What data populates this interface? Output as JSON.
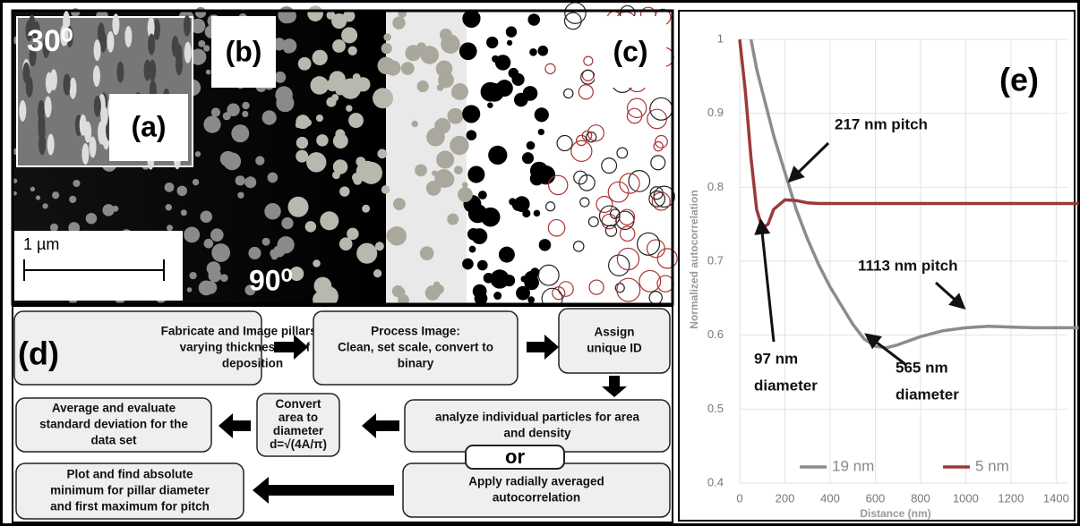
{
  "panel_labels": {
    "a": "(a)",
    "b": "(b)",
    "c": "(c)",
    "d": "(d)",
    "e": "(e)"
  },
  "micrograph": {
    "tilt_inset": "30⁰",
    "tilt_main": "90⁰",
    "scale_bar": "1 µm"
  },
  "flowchart": {
    "boxes": [
      {
        "lines": [
          "Fabricate and Image pillars with",
          "varying thicknesses of Pt",
          "deposition"
        ]
      },
      {
        "lines": [
          "Process Image:",
          "Clean, set scale, convert to",
          "binary"
        ]
      },
      {
        "lines": [
          "Assign",
          "unique ID"
        ]
      },
      {
        "lines": [
          "analyze individual particles for area",
          "and density"
        ]
      },
      {
        "lines": [
          "Convert",
          "area to",
          "diameter",
          "d=√(4A/π)"
        ]
      },
      {
        "lines": [
          "Average and evaluate",
          "standard deviation for the",
          "data set"
        ]
      },
      {
        "lines": [
          "Apply radially averaged",
          "autocorrelation"
        ]
      },
      {
        "lines": [
          "Plot and find absolute",
          "minimum for pillar diameter",
          "and first maximum for pitch"
        ]
      }
    ],
    "connector": "or"
  },
  "chart_data": {
    "type": "line",
    "xlabel": "Distance (nm)",
    "ylabel": "Normalized  autocorrelation",
    "x": [
      0,
      25,
      50,
      75,
      100,
      125,
      150,
      200,
      250,
      300,
      350,
      400,
      450,
      500,
      550,
      600,
      650,
      700,
      800,
      900,
      1000,
      1100,
      1200,
      1300,
      1400,
      1500
    ],
    "series": [
      {
        "name": "19 nm",
        "color": "#8c8c8c",
        "values": [
          null,
          null,
          1.0,
          0.96,
          0.93,
          0.9,
          0.87,
          0.82,
          0.77,
          0.73,
          0.695,
          0.665,
          0.64,
          0.615,
          0.595,
          0.585,
          0.583,
          0.587,
          0.598,
          0.606,
          0.61,
          0.612,
          0.611,
          0.61,
          0.61,
          0.61
        ]
      },
      {
        "name": "5 nm",
        "color": "#9b3a3a",
        "values": [
          1.0,
          0.93,
          0.84,
          0.77,
          0.745,
          0.75,
          0.77,
          0.783,
          0.782,
          0.779,
          0.778,
          0.778,
          0.778,
          0.778,
          0.778,
          0.778,
          0.778,
          0.778,
          0.778,
          0.778,
          0.778,
          0.778,
          0.778,
          0.778,
          0.778,
          0.778
        ]
      }
    ],
    "xlim": [
      0,
      1450
    ],
    "ylim": [
      0.4,
      1.0
    ],
    "xticks": [
      0,
      200,
      400,
      600,
      800,
      1000,
      1200,
      1400
    ],
    "yticks": [
      0.4,
      0.5,
      0.6,
      0.7,
      0.8,
      0.9,
      1
    ],
    "grid": true,
    "legend": "bottom",
    "annotations": [
      {
        "lines": [
          "217 nm pitch"
        ]
      },
      {
        "lines": [
          "1113 nm pitch"
        ]
      },
      {
        "lines": [
          "97 nm",
          "diameter"
        ]
      },
      {
        "lines": [
          "565 nm",
          "diameter"
        ]
      }
    ]
  }
}
